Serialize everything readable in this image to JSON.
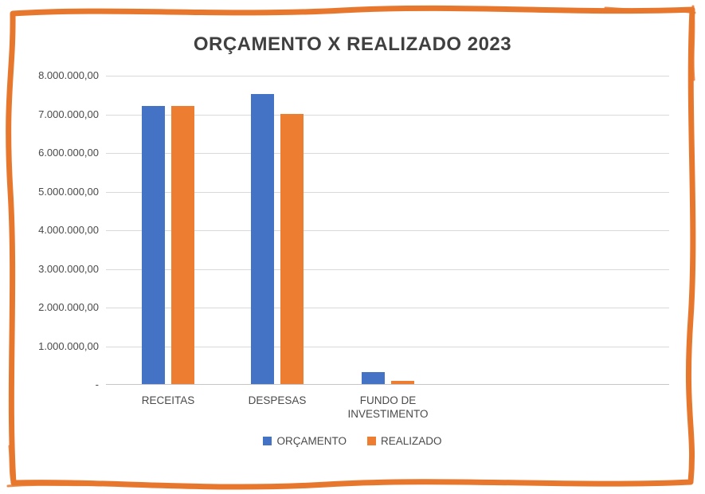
{
  "title": "ORÇAMENTO X REALIZADO 2023",
  "border_color": "#E8772E",
  "chart_data": {
    "type": "bar",
    "title": "ORÇAMENTO X REALIZADO 2023",
    "categories": [
      "RECEITAS",
      "DESPESAS",
      "FUNDO DE INVESTIMENTO"
    ],
    "series": [
      {
        "name": "ORÇAMENTO",
        "color": "#4472C4",
        "values": [
          7200000,
          7500000,
          300000
        ]
      },
      {
        "name": "REALIZADO",
        "color": "#ED7D31",
        "values": [
          7200000,
          7000000,
          80000
        ]
      }
    ],
    "xlabel": "",
    "ylabel": "",
    "ylim": [
      0,
      8000000
    ],
    "ytick_step": 1000000,
    "ytick_labels": [
      "8.000.000,00",
      "7.000.000,00",
      "6.000.000,00",
      "5.000.000,00",
      "4.000.000,00",
      "3.000.000,00",
      "2.000.000,00",
      "1.000.000,00",
      "-"
    ],
    "grid": true,
    "legend_position": "bottom"
  }
}
